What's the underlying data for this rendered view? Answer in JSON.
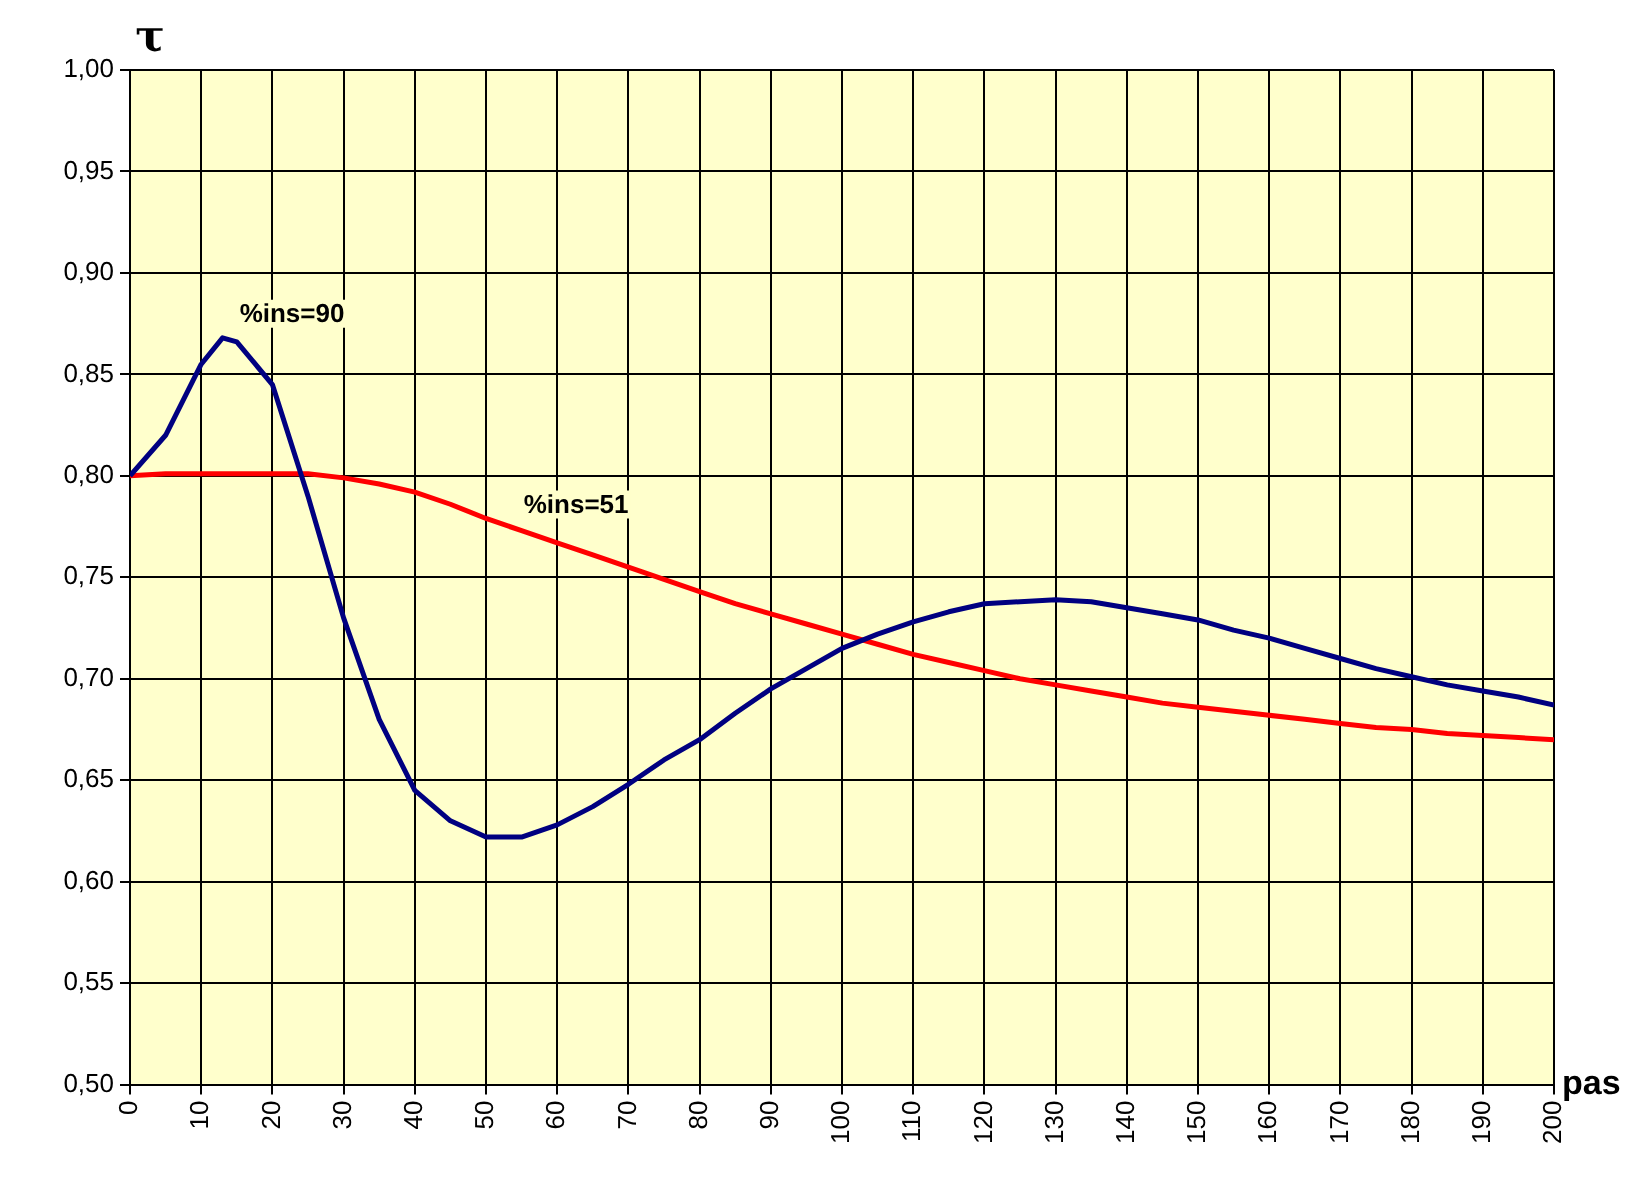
{
  "chart_data": {
    "type": "line",
    "xlabel": "pas",
    "ylabel": "τ",
    "xlim": [
      0,
      200
    ],
    "xticks": [
      0,
      10,
      20,
      30,
      40,
      50,
      60,
      70,
      80,
      90,
      100,
      110,
      120,
      130,
      140,
      150,
      160,
      170,
      180,
      190,
      200
    ],
    "ylim": [
      0.5,
      1.0
    ],
    "yticks": [
      {
        "value": 0.5,
        "label": "0,50"
      },
      {
        "value": 0.55,
        "label": "0,55"
      },
      {
        "value": 0.6,
        "label": "0,60"
      },
      {
        "value": 0.65,
        "label": "0,65"
      },
      {
        "value": 0.7,
        "label": "0,70"
      },
      {
        "value": 0.75,
        "label": "0,75"
      },
      {
        "value": 0.8,
        "label": "0,80"
      },
      {
        "value": 0.85,
        "label": "0,85"
      },
      {
        "value": 0.9,
        "label": "0,90"
      },
      {
        "value": 0.95,
        "label": "0,95"
      },
      {
        "value": 1.0,
        "label": "1,00"
      }
    ],
    "grid": true,
    "legend": false,
    "marker": "none",
    "line_style": "solid",
    "x": [
      0,
      5,
      10,
      13,
      15,
      20,
      25,
      30,
      35,
      40,
      45,
      50,
      55,
      60,
      65,
      70,
      75,
      80,
      85,
      90,
      95,
      100,
      105,
      110,
      115,
      120,
      125,
      130,
      135,
      140,
      145,
      150,
      155,
      160,
      165,
      170,
      175,
      180,
      185,
      190,
      195,
      200
    ],
    "series": [
      {
        "color": "#000080",
        "values": [
          0.8,
          0.82,
          0.855,
          0.868,
          0.866,
          0.845,
          0.79,
          0.73,
          0.68,
          0.645,
          0.63,
          0.622,
          0.622,
          0.628,
          0.637,
          0.648,
          0.66,
          0.67,
          0.683,
          0.695,
          0.705,
          0.715,
          0.722,
          0.728,
          0.733,
          0.737,
          0.738,
          0.739,
          0.738,
          0.735,
          0.732,
          0.729,
          0.724,
          0.72,
          0.715,
          0.71,
          0.705,
          0.701,
          0.697,
          0.694,
          0.691,
          0.687
        ]
      },
      {
        "color": "#ff0000",
        "values": [
          0.8,
          0.801,
          0.801,
          0.801,
          0.801,
          0.801,
          0.801,
          0.799,
          0.796,
          0.792,
          0.786,
          0.779,
          0.773,
          0.767,
          0.761,
          0.755,
          0.749,
          0.743,
          0.737,
          0.732,
          0.727,
          0.722,
          0.717,
          0.712,
          0.708,
          0.704,
          0.7,
          0.697,
          0.694,
          0.691,
          0.688,
          0.686,
          0.684,
          0.682,
          0.68,
          0.678,
          0.676,
          0.675,
          0.673,
          0.672,
          0.671,
          0.67
        ]
      }
    ],
    "annotations": [
      "%ins=90",
      "%ins=51"
    ]
  }
}
